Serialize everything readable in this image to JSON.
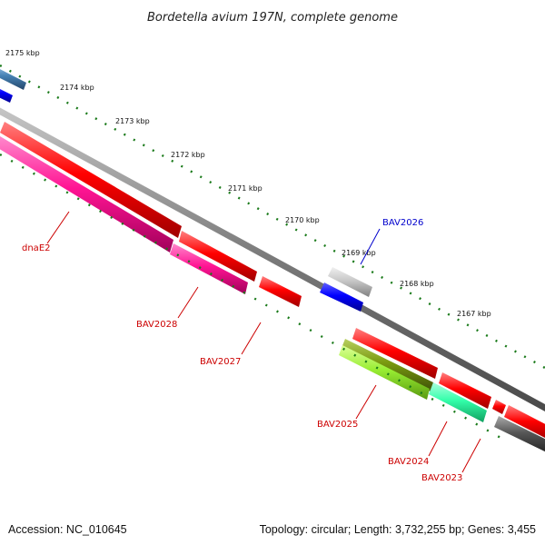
{
  "title": "Bordetella avium 197N, complete genome",
  "ticks": [
    "2175 kbp",
    "2174 kbp",
    "2173 kbp",
    "2172 kbp",
    "2171 kbp",
    "2170 kbp",
    "2169 kbp",
    "2168 kbp",
    "2167 kbp"
  ],
  "gene_labels": [
    {
      "name": "dnaE2",
      "color": "#cc0000"
    },
    {
      "name": "BAV2028",
      "color": "#cc0000"
    },
    {
      "name": "BAV2027",
      "color": "#cc0000"
    },
    {
      "name": "BAV2026",
      "color": "#0000cc"
    },
    {
      "name": "BAV2025",
      "color": "#cc0000"
    },
    {
      "name": "BAV2024",
      "color": "#cc0000"
    },
    {
      "name": "BAV2023",
      "color": "#cc0000"
    }
  ],
  "footer": {
    "accession": "Accession: NC_010645",
    "summary": "Topology: circular; Length: 3,732,255 bp; Genes: 3,455"
  },
  "colors": {
    "backbone": "#7a7a7a",
    "tick_dots": "#1a7a1a",
    "cds_red": "#ff0000",
    "cds_magenta": "#ff1493",
    "cds_blue": "#0000ff",
    "cds_steelblue": "#4682b4",
    "cds_silver": "#c8c8c8",
    "cds_olive": "#7a9a10",
    "cds_lime": "#99ee33",
    "cds_mint": "#33ffaa",
    "cds_gray": "#555555"
  }
}
